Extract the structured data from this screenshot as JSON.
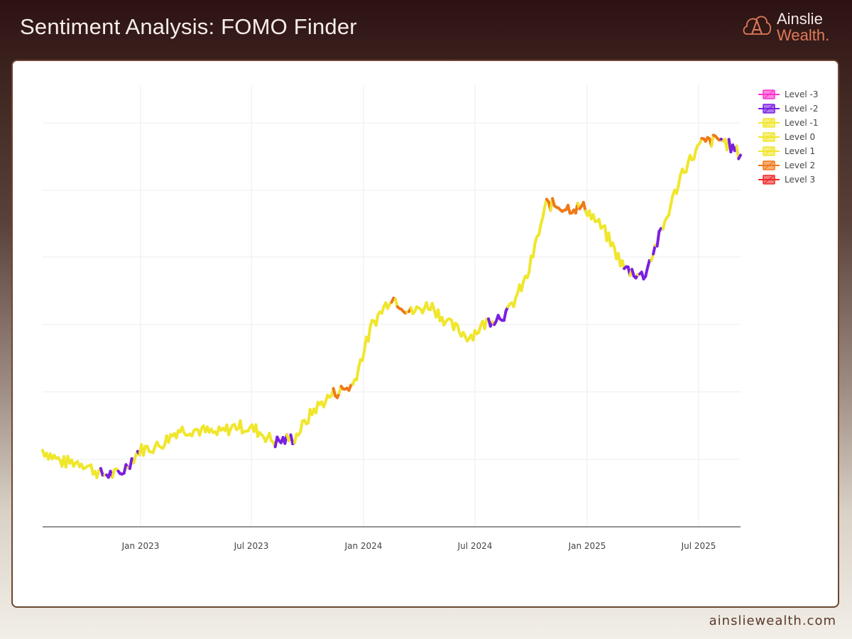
{
  "header": {
    "title": "Sentiment Analysis: FOMO Finder"
  },
  "logo": {
    "line1": "Ainslie",
    "line2": "Wealth.",
    "icon": "ainslie-a-cloud-logo-icon"
  },
  "footer": {
    "url": "ainsliewealth.com"
  },
  "colors": {
    "background_top": "#2c1212",
    "card_border": "#6b4632",
    "level_-3": "#ff33cc",
    "level_-2": "#7a1fe0",
    "level_-1": "#f0e62c",
    "level_0": "#f0e62c",
    "level_1": "#f0e62c",
    "level_2": "#f07818",
    "level_3": "#f02828"
  },
  "chart_data": {
    "type": "line",
    "title": "Sentiment Analysis: FOMO Finder",
    "xlabel": "",
    "ylabel": "",
    "grid": true,
    "legend_position": "right-top",
    "x_ticks": [
      "Jan 2023",
      "Jul 2023",
      "Jan 2024",
      "Jul 2024",
      "Jan 2025",
      "Jul 2025"
    ],
    "y_ticks": [],
    "y_tick_labels_visible": false,
    "x_range": [
      "Sep 2022",
      "Sep 2025"
    ],
    "legend": [
      {
        "name": "Level -3",
        "color": "#ff33cc"
      },
      {
        "name": "Level -2",
        "color": "#7a1fe0"
      },
      {
        "name": "Level -1",
        "color": "#f0e62c"
      },
      {
        "name": "Level 0",
        "color": "#f0e62c"
      },
      {
        "name": "Level 1",
        "color": "#f0e62c"
      },
      {
        "name": "Level 2",
        "color": "#f07818"
      },
      {
        "name": "Level 3",
        "color": "#f02828"
      }
    ],
    "series_note": "Price series (relative, y in pixel-space units 0=bottom axis, 100=top gridline) colored by sentiment level",
    "series": [
      {
        "name": "price",
        "x": [
          "2022-09",
          "2022-10",
          "2022-11",
          "2022-12",
          "2023-01",
          "2023-02",
          "2023-03",
          "2023-04",
          "2023-05",
          "2023-06",
          "2023-07",
          "2023-08",
          "2023-09",
          "2023-10",
          "2023-11",
          "2023-12",
          "2024-01",
          "2024-02",
          "2024-03",
          "2024-04",
          "2024-05",
          "2024-06",
          "2024-07",
          "2024-08",
          "2024-09",
          "2024-10",
          "2024-11",
          "2024-12",
          "2025-01",
          "2025-02",
          "2025-03",
          "2025-04",
          "2025-05",
          "2025-06",
          "2025-07",
          "2025-08",
          "2025-09"
        ],
        "values": [
          19,
          16,
          16,
          13,
          13,
          19,
          20,
          24,
          24,
          23,
          25,
          24,
          21,
          22,
          29,
          33,
          35,
          50,
          57,
          53,
          55,
          50,
          47,
          51,
          53,
          62,
          80,
          79,
          79,
          73,
          64,
          62,
          74,
          88,
          95,
          96,
          92
        ],
        "levels": [
          0,
          -1,
          0,
          -2,
          -2,
          0,
          1,
          1,
          0,
          0,
          0,
          -1,
          -2,
          0,
          1,
          2,
          1,
          1,
          2,
          0,
          0,
          -1,
          -1,
          -2,
          0,
          1,
          2,
          2,
          1,
          0,
          -2,
          -2,
          0,
          0,
          2,
          -2,
          0
        ]
      }
    ]
  }
}
